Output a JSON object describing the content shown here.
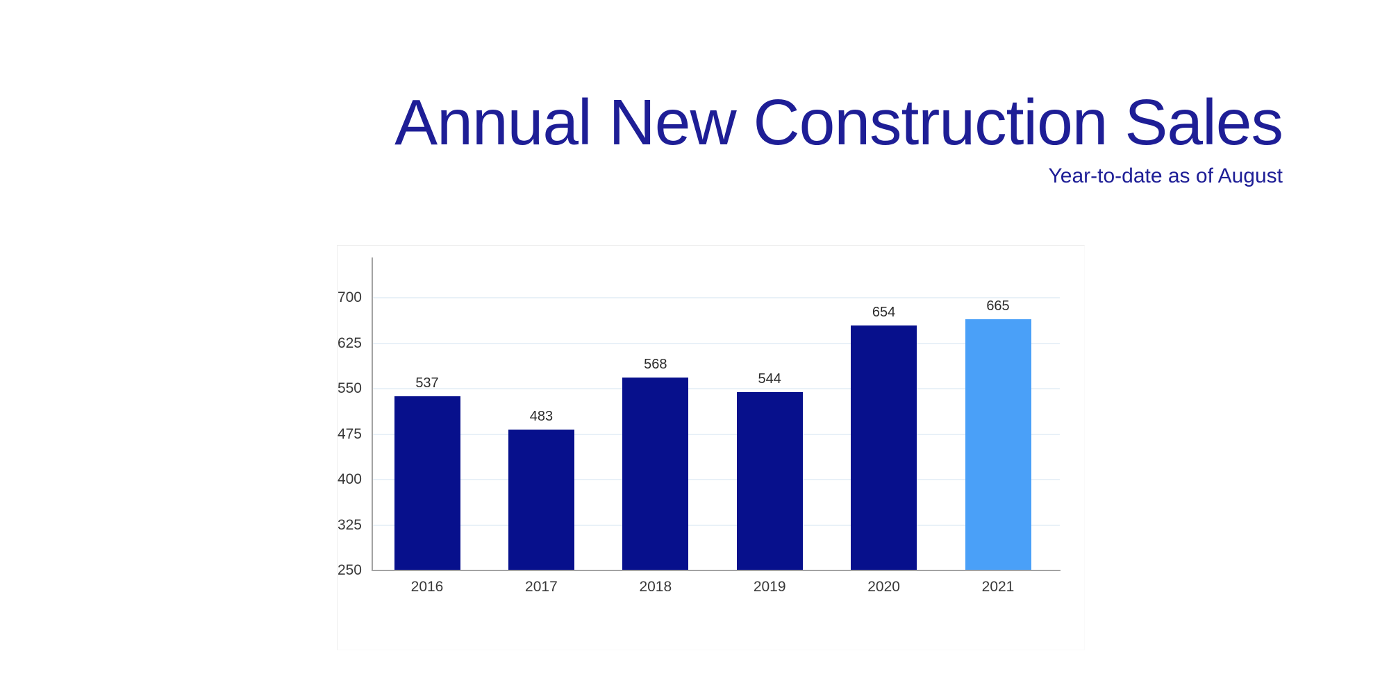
{
  "page": {
    "title": "Annual New Construction Sales",
    "subtitle": "Year-to-date as of August"
  },
  "colors": {
    "title_navy": "#1e1e96",
    "bar_dark": "#07108c",
    "bar_highlight": "#4aa0f8",
    "gridline": "#e9f1f8",
    "axis_line": "#a3a3a3",
    "tick_text": "#383838",
    "value_text": "#2b2b2b"
  },
  "chart_data": {
    "type": "bar",
    "title": "Annual New Construction Sales",
    "subtitle": "Year-to-date as of August",
    "categories": [
      "2016",
      "2017",
      "2018",
      "2019",
      "2020",
      "2021"
    ],
    "values": [
      537,
      483,
      568,
      544,
      654,
      665
    ],
    "highlighted_category": "2021",
    "y_ticks": [
      250,
      325,
      400,
      475,
      550,
      625,
      700
    ],
    "ylim": [
      250,
      700
    ],
    "xlabel": "",
    "ylabel": "",
    "grid": true,
    "legend": false,
    "bar_value_labels_shown": true
  }
}
